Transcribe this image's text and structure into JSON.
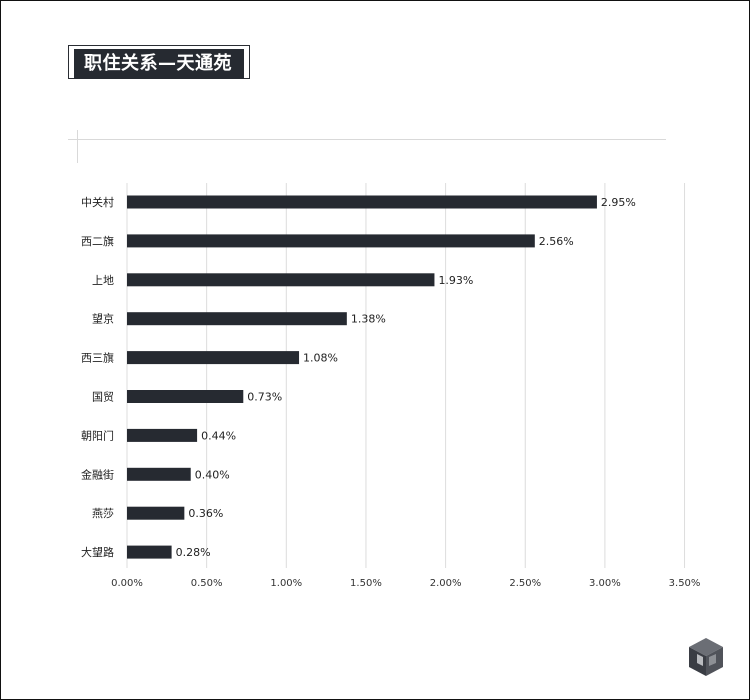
{
  "title": "职住关系—天通苑",
  "chart_data": {
    "type": "bar",
    "orientation": "horizontal",
    "categories": [
      "中关村",
      "西二旗",
      "上地",
      "望京",
      "西三旗",
      "国贸",
      "朝阳门",
      "金融街",
      "燕莎",
      "大望路"
    ],
    "values": [
      2.95,
      2.56,
      1.93,
      1.38,
      1.08,
      0.73,
      0.44,
      0.4,
      0.36,
      0.28
    ],
    "value_labels": [
      "2.95%",
      "2.56%",
      "1.93%",
      "1.38%",
      "1.08%",
      "0.73%",
      "0.44%",
      "0.40%",
      "0.36%",
      "0.28%"
    ],
    "xlim": [
      0,
      3.5
    ],
    "x_ticks": [
      0,
      0.5,
      1.0,
      1.5,
      2.0,
      2.5,
      3.0,
      3.5
    ],
    "x_tick_labels": [
      "0.00%",
      "0.50%",
      "1.00%",
      "1.50%",
      "2.00%",
      "2.50%",
      "3.00%",
      "3.50%"
    ],
    "grid": true,
    "legend": false,
    "bar_color": "#262a31"
  },
  "logo": {
    "icon": "cube-logo-icon",
    "color": "#3a3d44"
  }
}
